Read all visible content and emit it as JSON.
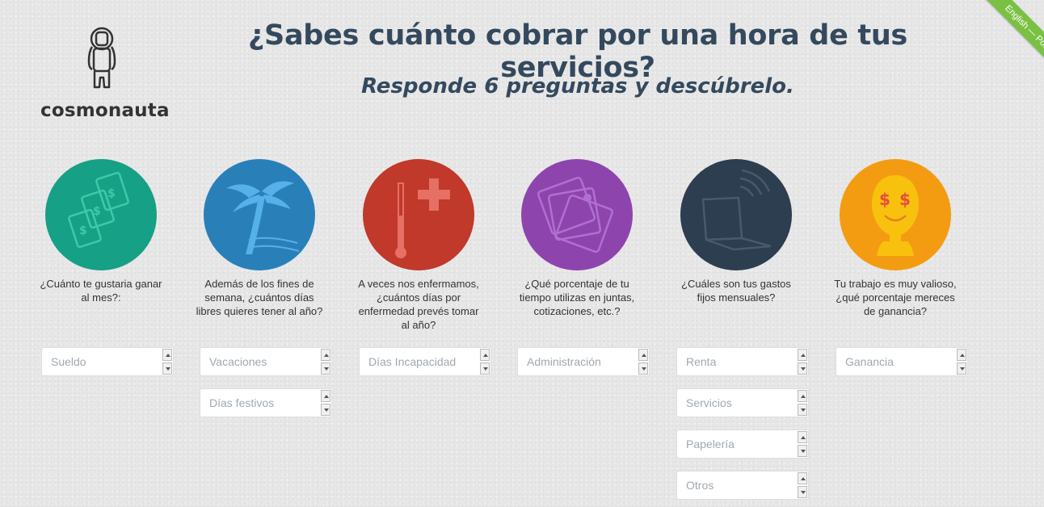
{
  "brand": {
    "name": "cosmonauta"
  },
  "header": {
    "title": "¿Sabes cuánto cobrar por una hora de tus servicios?",
    "subtitle": "Responde 6 preguntas y descúbrelo."
  },
  "language_ribbon": {
    "lang1": "English",
    "separator": "—",
    "lang2": "Português",
    "color": "#7ac143"
  },
  "questions": [
    {
      "color": "#16a085",
      "icon": "money-icon",
      "text": "¿Cuánto te gustaria ganar al mes?:",
      "fields": [
        {
          "placeholder": "Sueldo",
          "value": ""
        }
      ]
    },
    {
      "color": "#2980b9",
      "icon": "palm-tree-icon",
      "text": "Además de los fines de semana, ¿cuántos días libres quieres tener al año?",
      "fields": [
        {
          "placeholder": "Vacaciones",
          "value": ""
        },
        {
          "placeholder": "Días festivos",
          "value": ""
        }
      ]
    },
    {
      "color": "#c0392b",
      "icon": "thermometer-icon",
      "text": "A veces nos enfermamos, ¿cuántos días por enfermedad prevés tomar al año?",
      "fields": [
        {
          "placeholder": "Días Incapacidad",
          "value": ""
        }
      ]
    },
    {
      "color": "#8e44ad",
      "icon": "documents-icon",
      "text": "¿Qué porcentaje de tu tiempo utilizas en juntas, cotizaciones, etc.?",
      "fields": [
        {
          "placeholder": "Administración",
          "value": ""
        }
      ]
    },
    {
      "color": "#2c3e50",
      "icon": "laptop-wifi-icon",
      "text": "¿Cuáles son tus gastos fijos mensuales?",
      "fields": [
        {
          "placeholder": "Renta",
          "value": ""
        },
        {
          "placeholder": "Servicios",
          "value": ""
        },
        {
          "placeholder": "Papelería",
          "value": ""
        },
        {
          "placeholder": "Otros",
          "value": ""
        }
      ]
    },
    {
      "color": "#f39c12",
      "icon": "money-head-icon",
      "text": "Tu trabajo es muy valioso, ¿qué porcentaje mereces de ganancia?",
      "fields": [
        {
          "placeholder": "Ganancia",
          "value": ""
        }
      ]
    }
  ]
}
